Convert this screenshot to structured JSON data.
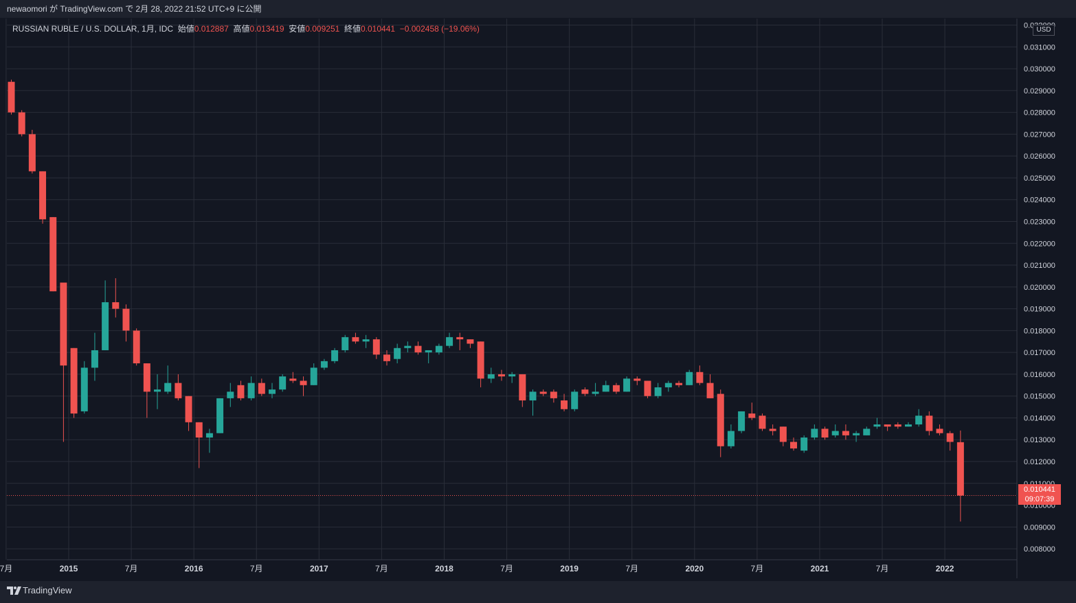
{
  "header": {
    "publish_line": "newaomori が TradingView.com で 2月 28, 2022 21:52 UTC+9 に公開"
  },
  "legend": {
    "symbol": "RUSSIAN RUBLE / U.S. DOLLAR, 1月, IDC",
    "open_label": "始値",
    "open": "0.012887",
    "high_label": "高値",
    "high": "0.013419",
    "low_label": "安値",
    "low": "0.009251",
    "close_label": "終値",
    "close": "0.010441",
    "change": "−0.002458 (−19.06%)"
  },
  "price_axis": {
    "currency": "USD",
    "last_price": "0.010441",
    "countdown": "09:07:39"
  },
  "footer": {
    "brand": "TradingView"
  },
  "colors": {
    "up": "#26a69a",
    "down": "#ef5350",
    "background": "#131722",
    "grid": "#2a2e39",
    "axis_text": "#d1d4dc"
  },
  "chart_data": {
    "type": "candlestick",
    "timeframe": "1M",
    "ylim": [
      0.0075,
      0.0323
    ],
    "y_ticks": [
      "0.008000",
      "0.009000",
      "0.010000",
      "0.011000",
      "0.012000",
      "0.013000",
      "0.014000",
      "0.015000",
      "0.016000",
      "0.017000",
      "0.018000",
      "0.019000",
      "0.020000",
      "0.021000",
      "0.022000",
      "0.023000",
      "0.024000",
      "0.025000",
      "0.026000",
      "0.027000",
      "0.028000",
      "0.029000",
      "0.030000",
      "0.031000",
      "0.032000"
    ],
    "x_ticks": [
      {
        "label": "7月",
        "index": -0.5
      },
      {
        "label": "2015",
        "index": 5.5
      },
      {
        "label": "7月",
        "index": 11.5
      },
      {
        "label": "2016",
        "index": 17.5
      },
      {
        "label": "7月",
        "index": 23.5
      },
      {
        "label": "2017",
        "index": 29.5
      },
      {
        "label": "7月",
        "index": 35.5
      },
      {
        "label": "2018",
        "index": 41.5
      },
      {
        "label": "7月",
        "index": 47.5
      },
      {
        "label": "2019",
        "index": 53.5
      },
      {
        "label": "7月",
        "index": 59.5
      },
      {
        "label": "2020",
        "index": 65.5
      },
      {
        "label": "7月",
        "index": 71.5
      },
      {
        "label": "2021",
        "index": 77.5
      },
      {
        "label": "7月",
        "index": 83.5
      },
      {
        "label": "2022",
        "index": 89.5
      }
    ],
    "candles": [
      {
        "date": "2014-07",
        "o": 0.0294,
        "h": 0.0295,
        "l": 0.0279,
        "c": 0.028
      },
      {
        "date": "2014-08",
        "o": 0.028,
        "h": 0.0281,
        "l": 0.0269,
        "c": 0.027
      },
      {
        "date": "2014-09",
        "o": 0.027,
        "h": 0.0272,
        "l": 0.0252,
        "c": 0.0253
      },
      {
        "date": "2014-10",
        "o": 0.0253,
        "h": 0.0253,
        "l": 0.0229,
        "c": 0.0231
      },
      {
        "date": "2014-11",
        "o": 0.0232,
        "h": 0.0232,
        "l": 0.0198,
        "c": 0.0198
      },
      {
        "date": "2014-12",
        "o": 0.0202,
        "h": 0.0202,
        "l": 0.0129,
        "c": 0.0164
      },
      {
        "date": "2015-01",
        "o": 0.0172,
        "h": 0.0172,
        "l": 0.014,
        "c": 0.0142
      },
      {
        "date": "2015-02",
        "o": 0.0143,
        "h": 0.0166,
        "l": 0.0142,
        "c": 0.0163
      },
      {
        "date": "2015-03",
        "o": 0.0163,
        "h": 0.0179,
        "l": 0.0157,
        "c": 0.0171
      },
      {
        "date": "2015-04",
        "o": 0.0171,
        "h": 0.0203,
        "l": 0.0171,
        "c": 0.0193
      },
      {
        "date": "2015-05",
        "o": 0.0193,
        "h": 0.0204,
        "l": 0.0186,
        "c": 0.019
      },
      {
        "date": "2015-06",
        "o": 0.019,
        "h": 0.0192,
        "l": 0.0175,
        "c": 0.018
      },
      {
        "date": "2015-07",
        "o": 0.018,
        "h": 0.0181,
        "l": 0.0164,
        "c": 0.0165
      },
      {
        "date": "2015-08",
        "o": 0.0165,
        "h": 0.0165,
        "l": 0.014,
        "c": 0.0152
      },
      {
        "date": "2015-09",
        "o": 0.0152,
        "h": 0.016,
        "l": 0.0144,
        "c": 0.0153
      },
      {
        "date": "2015-10",
        "o": 0.0152,
        "h": 0.0164,
        "l": 0.0151,
        "c": 0.0156
      },
      {
        "date": "2015-11",
        "o": 0.0156,
        "h": 0.016,
        "l": 0.0148,
        "c": 0.0149
      },
      {
        "date": "2015-12",
        "o": 0.015,
        "h": 0.015,
        "l": 0.0134,
        "c": 0.0138
      },
      {
        "date": "2016-01",
        "o": 0.0138,
        "h": 0.0138,
        "l": 0.0117,
        "c": 0.0131
      },
      {
        "date": "2016-02",
        "o": 0.0131,
        "h": 0.0135,
        "l": 0.0124,
        "c": 0.0133
      },
      {
        "date": "2016-03",
        "o": 0.0133,
        "h": 0.0149,
        "l": 0.0133,
        "c": 0.0149
      },
      {
        "date": "2016-04",
        "o": 0.0149,
        "h": 0.0156,
        "l": 0.0145,
        "c": 0.0152
      },
      {
        "date": "2016-05",
        "o": 0.0155,
        "h": 0.0157,
        "l": 0.0148,
        "c": 0.0149
      },
      {
        "date": "2016-06",
        "o": 0.0149,
        "h": 0.0159,
        "l": 0.0148,
        "c": 0.0156
      },
      {
        "date": "2016-07",
        "o": 0.0156,
        "h": 0.0158,
        "l": 0.015,
        "c": 0.0151
      },
      {
        "date": "2016-08",
        "o": 0.0151,
        "h": 0.0156,
        "l": 0.0149,
        "c": 0.0153
      },
      {
        "date": "2016-09",
        "o": 0.0153,
        "h": 0.016,
        "l": 0.0152,
        "c": 0.0159
      },
      {
        "date": "2016-10",
        "o": 0.0158,
        "h": 0.0161,
        "l": 0.0156,
        "c": 0.0157
      },
      {
        "date": "2016-11",
        "o": 0.0157,
        "h": 0.0159,
        "l": 0.015,
        "c": 0.0155
      },
      {
        "date": "2016-12",
        "o": 0.0155,
        "h": 0.0165,
        "l": 0.0155,
        "c": 0.0163
      },
      {
        "date": "2017-01",
        "o": 0.0163,
        "h": 0.0167,
        "l": 0.0162,
        "c": 0.0166
      },
      {
        "date": "2017-02",
        "o": 0.0166,
        "h": 0.0172,
        "l": 0.0165,
        "c": 0.0171
      },
      {
        "date": "2017-03",
        "o": 0.0171,
        "h": 0.0178,
        "l": 0.017,
        "c": 0.0177
      },
      {
        "date": "2017-04",
        "o": 0.0177,
        "h": 0.0179,
        "l": 0.0174,
        "c": 0.0175
      },
      {
        "date": "2017-05",
        "o": 0.0175,
        "h": 0.0178,
        "l": 0.0172,
        "c": 0.0176
      },
      {
        "date": "2017-06",
        "o": 0.0176,
        "h": 0.0177,
        "l": 0.0167,
        "c": 0.0169
      },
      {
        "date": "2017-07",
        "o": 0.0169,
        "h": 0.0171,
        "l": 0.0164,
        "c": 0.0166
      },
      {
        "date": "2017-08",
        "o": 0.0167,
        "h": 0.0174,
        "l": 0.0165,
        "c": 0.0172
      },
      {
        "date": "2017-09",
        "o": 0.0172,
        "h": 0.0175,
        "l": 0.017,
        "c": 0.0173
      },
      {
        "date": "2017-10",
        "o": 0.0173,
        "h": 0.0175,
        "l": 0.0169,
        "c": 0.017
      },
      {
        "date": "2017-11",
        "o": 0.017,
        "h": 0.0171,
        "l": 0.0165,
        "c": 0.0171
      },
      {
        "date": "2017-12",
        "o": 0.017,
        "h": 0.0174,
        "l": 0.0169,
        "c": 0.0173
      },
      {
        "date": "2018-01",
        "o": 0.0173,
        "h": 0.0179,
        "l": 0.0172,
        "c": 0.0177
      },
      {
        "date": "2018-02",
        "o": 0.0177,
        "h": 0.0179,
        "l": 0.0171,
        "c": 0.0176
      },
      {
        "date": "2018-03",
        "o": 0.0176,
        "h": 0.0176,
        "l": 0.0172,
        "c": 0.0174
      },
      {
        "date": "2018-04",
        "o": 0.0175,
        "h": 0.0175,
        "l": 0.0154,
        "c": 0.0158
      },
      {
        "date": "2018-05",
        "o": 0.0158,
        "h": 0.0163,
        "l": 0.0156,
        "c": 0.016
      },
      {
        "date": "2018-06",
        "o": 0.016,
        "h": 0.0162,
        "l": 0.0157,
        "c": 0.0159
      },
      {
        "date": "2018-07",
        "o": 0.0159,
        "h": 0.0161,
        "l": 0.0156,
        "c": 0.016
      },
      {
        "date": "2018-08",
        "o": 0.016,
        "h": 0.016,
        "l": 0.0145,
        "c": 0.0148
      },
      {
        "date": "2018-09",
        "o": 0.0148,
        "h": 0.0153,
        "l": 0.0141,
        "c": 0.0152
      },
      {
        "date": "2018-10",
        "o": 0.0152,
        "h": 0.0153,
        "l": 0.015,
        "c": 0.0151
      },
      {
        "date": "2018-11",
        "o": 0.0152,
        "h": 0.0153,
        "l": 0.0147,
        "c": 0.0149
      },
      {
        "date": "2018-12",
        "o": 0.0148,
        "h": 0.0151,
        "l": 0.0143,
        "c": 0.0144
      },
      {
        "date": "2019-01",
        "o": 0.0144,
        "h": 0.0153,
        "l": 0.0143,
        "c": 0.0152
      },
      {
        "date": "2019-02",
        "o": 0.0153,
        "h": 0.0154,
        "l": 0.015,
        "c": 0.0151
      },
      {
        "date": "2019-03",
        "o": 0.0151,
        "h": 0.0156,
        "l": 0.015,
        "c": 0.0152
      },
      {
        "date": "2019-04",
        "o": 0.0152,
        "h": 0.0157,
        "l": 0.0152,
        "c": 0.0155
      },
      {
        "date": "2019-05",
        "o": 0.0155,
        "h": 0.0156,
        "l": 0.0151,
        "c": 0.0152
      },
      {
        "date": "2019-06",
        "o": 0.0152,
        "h": 0.0159,
        "l": 0.0152,
        "c": 0.0158
      },
      {
        "date": "2019-07",
        "o": 0.0158,
        "h": 0.0159,
        "l": 0.0155,
        "c": 0.0157
      },
      {
        "date": "2019-08",
        "o": 0.0157,
        "h": 0.0157,
        "l": 0.0149,
        "c": 0.015
      },
      {
        "date": "2019-09",
        "o": 0.015,
        "h": 0.0156,
        "l": 0.0149,
        "c": 0.0154
      },
      {
        "date": "2019-10",
        "o": 0.0154,
        "h": 0.0157,
        "l": 0.0152,
        "c": 0.0156
      },
      {
        "date": "2019-11",
        "o": 0.0156,
        "h": 0.0157,
        "l": 0.0154,
        "c": 0.0155
      },
      {
        "date": "2019-12",
        "o": 0.0155,
        "h": 0.0162,
        "l": 0.0155,
        "c": 0.0161
      },
      {
        "date": "2020-01",
        "o": 0.0161,
        "h": 0.0164,
        "l": 0.0155,
        "c": 0.0156
      },
      {
        "date": "2020-02",
        "o": 0.0156,
        "h": 0.016,
        "l": 0.0149,
        "c": 0.0149
      },
      {
        "date": "2020-03",
        "o": 0.0151,
        "h": 0.0153,
        "l": 0.0122,
        "c": 0.0127
      },
      {
        "date": "2020-04",
        "o": 0.0127,
        "h": 0.0137,
        "l": 0.0126,
        "c": 0.0134
      },
      {
        "date": "2020-05",
        "o": 0.0134,
        "h": 0.0143,
        "l": 0.0133,
        "c": 0.0143
      },
      {
        "date": "2020-06",
        "o": 0.0142,
        "h": 0.0147,
        "l": 0.0139,
        "c": 0.014
      },
      {
        "date": "2020-07",
        "o": 0.0141,
        "h": 0.0142,
        "l": 0.0134,
        "c": 0.0135
      },
      {
        "date": "2020-08",
        "o": 0.0135,
        "h": 0.0137,
        "l": 0.0132,
        "c": 0.0134
      },
      {
        "date": "2020-09",
        "o": 0.0136,
        "h": 0.0136,
        "l": 0.0127,
        "c": 0.0129
      },
      {
        "date": "2020-10",
        "o": 0.0129,
        "h": 0.0131,
        "l": 0.0125,
        "c": 0.0126
      },
      {
        "date": "2020-11",
        "o": 0.0125,
        "h": 0.0132,
        "l": 0.0124,
        "c": 0.0131
      },
      {
        "date": "2020-12",
        "o": 0.0131,
        "h": 0.0137,
        "l": 0.013,
        "c": 0.0135
      },
      {
        "date": "2021-01",
        "o": 0.0135,
        "h": 0.0136,
        "l": 0.013,
        "c": 0.0131
      },
      {
        "date": "2021-02",
        "o": 0.0132,
        "h": 0.0137,
        "l": 0.0131,
        "c": 0.0134
      },
      {
        "date": "2021-03",
        "o": 0.0134,
        "h": 0.0137,
        "l": 0.013,
        "c": 0.0132
      },
      {
        "date": "2021-04",
        "o": 0.0132,
        "h": 0.0134,
        "l": 0.0129,
        "c": 0.0133
      },
      {
        "date": "2021-05",
        "o": 0.0132,
        "h": 0.0136,
        "l": 0.0132,
        "c": 0.0135
      },
      {
        "date": "2021-06",
        "o": 0.0136,
        "h": 0.014,
        "l": 0.0135,
        "c": 0.0137
      },
      {
        "date": "2021-07",
        "o": 0.0137,
        "h": 0.0137,
        "l": 0.0134,
        "c": 0.0136
      },
      {
        "date": "2021-08",
        "o": 0.0137,
        "h": 0.0138,
        "l": 0.0135,
        "c": 0.0136
      },
      {
        "date": "2021-09",
        "o": 0.0136,
        "h": 0.0138,
        "l": 0.0136,
        "c": 0.0137
      },
      {
        "date": "2021-10",
        "o": 0.0137,
        "h": 0.0144,
        "l": 0.0136,
        "c": 0.0141
      },
      {
        "date": "2021-11",
        "o": 0.0141,
        "h": 0.0143,
        "l": 0.0132,
        "c": 0.0134
      },
      {
        "date": "2021-12",
        "o": 0.0135,
        "h": 0.0137,
        "l": 0.0132,
        "c": 0.0133
      },
      {
        "date": "2022-01",
        "o": 0.0133,
        "h": 0.0134,
        "l": 0.0125,
        "c": 0.0129
      },
      {
        "date": "2022-02",
        "o": 0.012887,
        "h": 0.013419,
        "l": 0.009251,
        "c": 0.010441
      }
    ],
    "last_price": 0.010441
  }
}
